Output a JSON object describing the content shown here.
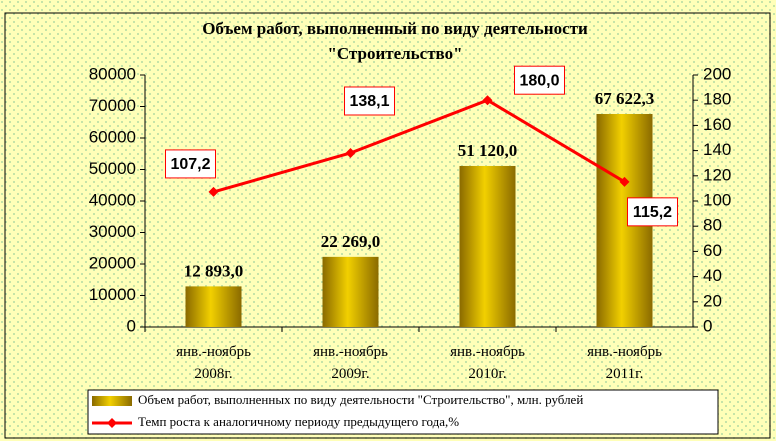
{
  "chart_data": {
    "type": "bar",
    "title": [
      "Объем работ, выполненный по виду деятельности",
      "\"Строительство\""
    ],
    "categories": [
      "янв.-ноябрь 2008г.",
      "янв.-ноябрь 2009г.",
      "янв.-ноябрь 2010г.",
      "янв.-ноябрь 2011г."
    ],
    "series": [
      {
        "name": "Объем работ, выполненных по виду деятельности \"Строительство\", млн. рублей",
        "type": "bar",
        "color": "#d4aa00",
        "values": [
          12893.0,
          22269.0,
          51120.0,
          67622.3
        ],
        "value_labels": [
          "12 893,0",
          "22 269,0",
          "51 120,0",
          "67 622,3"
        ]
      },
      {
        "name": "Темп роста к аналогичному периоду предыдущего года,%",
        "type": "line",
        "axis": "y2",
        "color": "#ff0000",
        "values": [
          107.2,
          138.1,
          180.0,
          115.2
        ],
        "value_labels": [
          "107,2",
          "138,1",
          "180,0",
          "115,2"
        ]
      }
    ],
    "ylim": [
      0,
      80000
    ],
    "yticks": [
      0,
      10000,
      20000,
      30000,
      40000,
      50000,
      60000,
      70000,
      80000
    ],
    "y2lim": [
      0,
      200
    ],
    "y2ticks": [
      0,
      20,
      40,
      60,
      80,
      100,
      120,
      140,
      160,
      180,
      200
    ],
    "legend": "bottom"
  }
}
